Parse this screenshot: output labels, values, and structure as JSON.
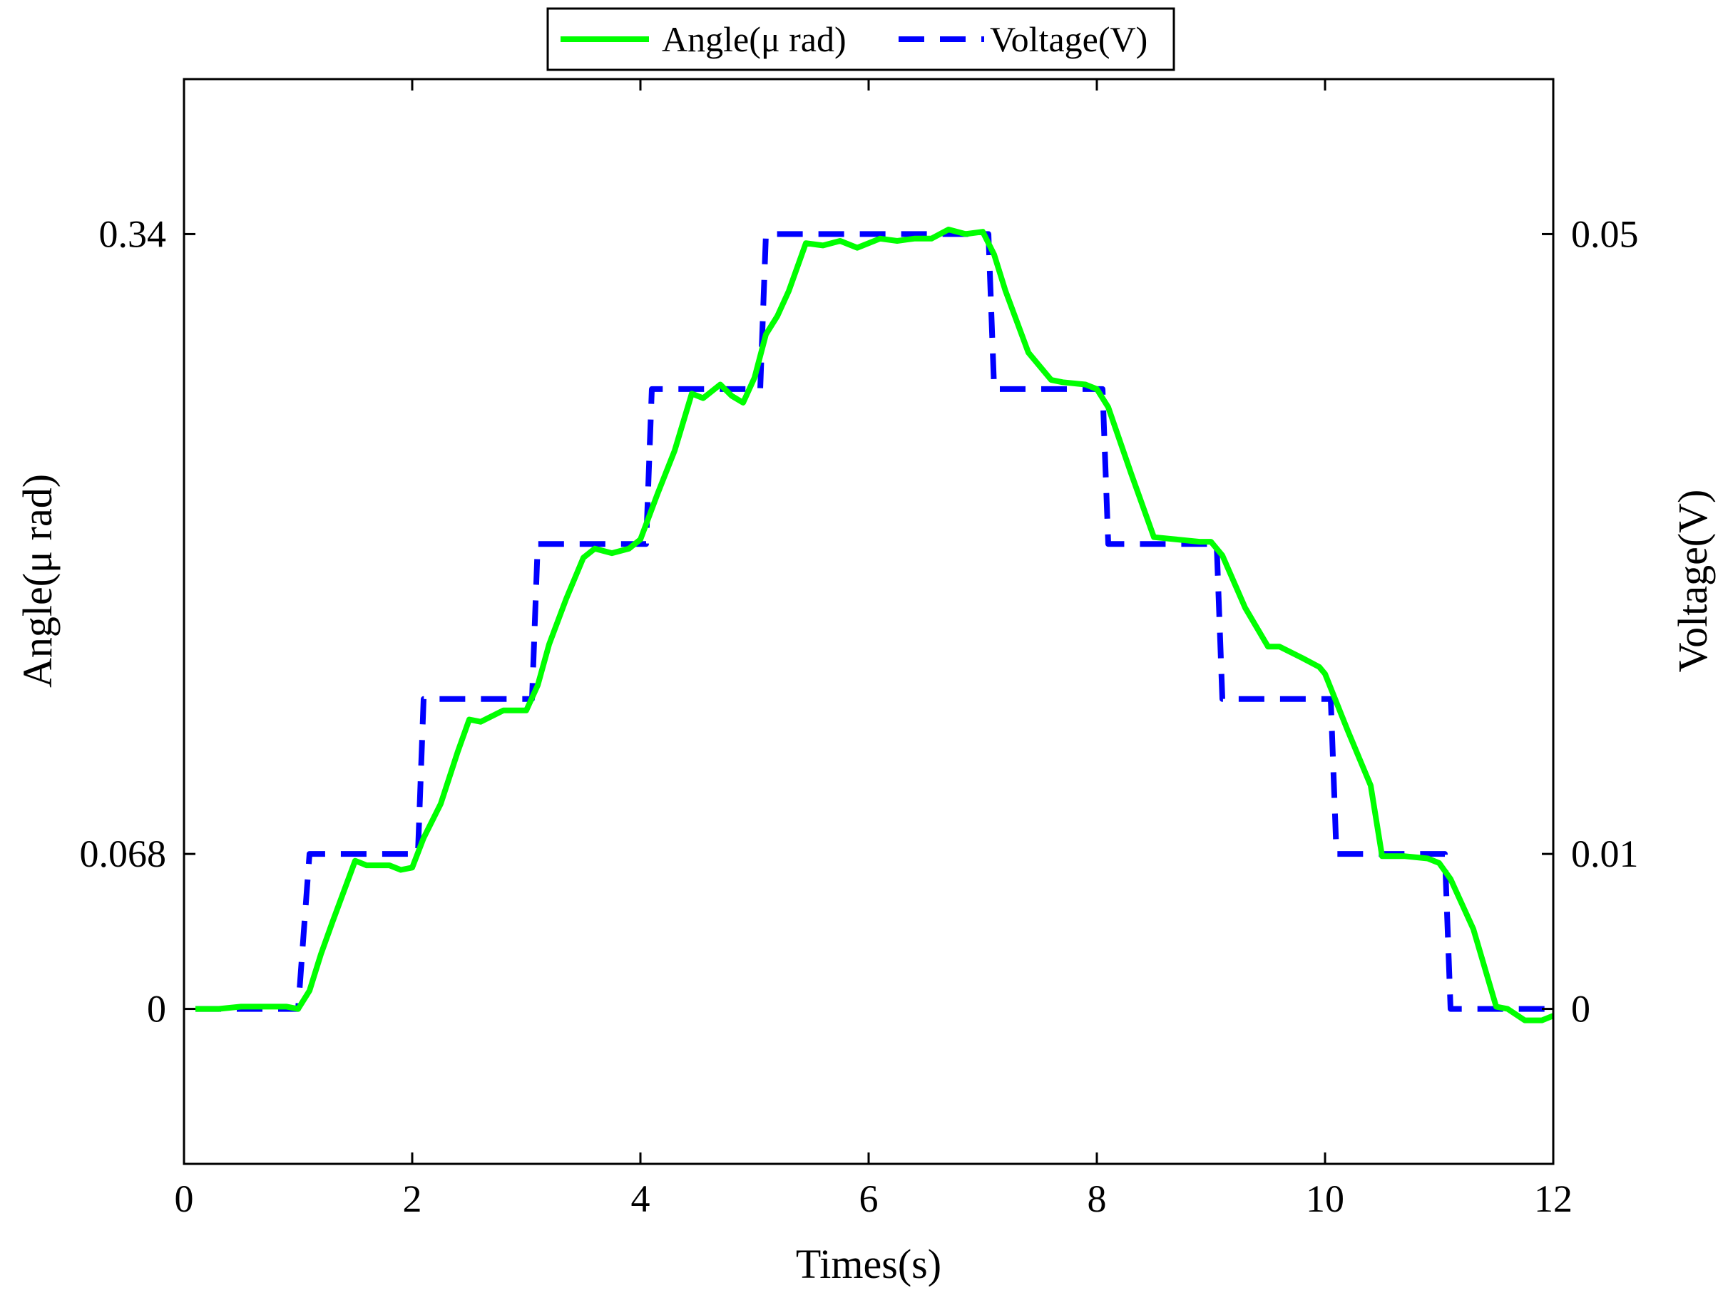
{
  "chart_data": {
    "type": "line",
    "xlabel": "Times(s)",
    "ylabel_left": "Angle(μ rad)",
    "ylabel_right": "Voltage(V)",
    "xlim": [
      0,
      12
    ],
    "ylim_left": [
      -0.068,
      0.408
    ],
    "ylim_right": [
      -0.01,
      0.06
    ],
    "x_ticks": [
      0,
      2,
      4,
      6,
      8,
      10,
      12
    ],
    "x_tick_labels": [
      "0",
      "2",
      "4",
      "6",
      "8",
      "10",
      "12"
    ],
    "y_left_ticks": [
      0,
      0.068,
      0.34
    ],
    "y_left_tick_labels": [
      "0",
      "0.068",
      "0.34"
    ],
    "y_right_ticks": [
      0,
      0.01,
      0.05
    ],
    "y_right_tick_labels": [
      "0",
      "0.01",
      "0.05"
    ],
    "grid": false,
    "legend": {
      "position": "top-center",
      "orientation": "horizontal"
    },
    "series": [
      {
        "name": "Angle(μ rad)",
        "axis": "left",
        "color": "#00ff00",
        "style": "solid",
        "x": [
          0.1,
          0.3,
          0.5,
          0.7,
          0.9,
          1.0,
          1.1,
          1.2,
          1.3,
          1.5,
          1.6,
          1.8,
          1.9,
          2.0,
          2.1,
          2.25,
          2.4,
          2.5,
          2.6,
          2.8,
          3.0,
          3.1,
          3.2,
          3.35,
          3.5,
          3.6,
          3.75,
          3.9,
          4.0,
          4.15,
          4.3,
          4.45,
          4.55,
          4.7,
          4.8,
          4.9,
          5.0,
          5.1,
          5.2,
          5.3,
          5.45,
          5.6,
          5.75,
          5.9,
          6.1,
          6.25,
          6.4,
          6.55,
          6.7,
          6.85,
          7.0,
          7.1,
          7.2,
          7.4,
          7.6,
          7.7,
          7.9,
          8.0,
          8.1,
          8.3,
          8.5,
          8.7,
          8.9,
          9.0,
          9.1,
          9.3,
          9.5,
          9.6,
          9.8,
          9.95,
          10.0,
          10.2,
          10.4,
          10.5,
          10.7,
          10.9,
          11.0,
          11.1,
          11.3,
          11.5,
          11.6,
          11.75,
          11.9,
          12.0
        ],
        "values": [
          0.0,
          0.0,
          0.001,
          0.001,
          0.001,
          0.0,
          0.008,
          0.024,
          0.038,
          0.065,
          0.063,
          0.063,
          0.061,
          0.062,
          0.075,
          0.09,
          0.113,
          0.127,
          0.126,
          0.131,
          0.131,
          0.142,
          0.16,
          0.18,
          0.198,
          0.202,
          0.2,
          0.202,
          0.206,
          0.226,
          0.245,
          0.27,
          0.268,
          0.274,
          0.269,
          0.266,
          0.277,
          0.296,
          0.304,
          0.315,
          0.336,
          0.335,
          0.337,
          0.334,
          0.338,
          0.337,
          0.338,
          0.338,
          0.342,
          0.34,
          0.341,
          0.331,
          0.315,
          0.288,
          0.276,
          0.275,
          0.274,
          0.272,
          0.264,
          0.235,
          0.207,
          0.206,
          0.205,
          0.205,
          0.199,
          0.176,
          0.159,
          0.159,
          0.154,
          0.15,
          0.147,
          0.122,
          0.098,
          0.067,
          0.067,
          0.066,
          0.064,
          0.057,
          0.035,
          0.001,
          0.0,
          -0.005,
          -0.005,
          -0.003
        ]
      },
      {
        "name": "Voltage(V)",
        "axis": "right",
        "color": "#0000ff",
        "style": "dashed",
        "x": [
          0.1,
          0.95,
          1.0,
          1.1,
          1.95,
          2.05,
          2.1,
          2.95,
          3.05,
          3.1,
          3.95,
          4.05,
          4.1,
          4.95,
          5.05,
          5.1,
          6.95,
          7.05,
          7.1,
          7.95,
          8.05,
          8.1,
          8.95,
          9.05,
          9.1,
          9.95,
          10.05,
          10.1,
          10.95,
          11.05,
          11.1,
          12.0
        ],
        "values": [
          0.0,
          0.0,
          0.0,
          0.01,
          0.01,
          0.01,
          0.02,
          0.02,
          0.02,
          0.03,
          0.03,
          0.03,
          0.04,
          0.04,
          0.04,
          0.05,
          0.05,
          0.05,
          0.04,
          0.04,
          0.04,
          0.03,
          0.03,
          0.03,
          0.02,
          0.02,
          0.02,
          0.01,
          0.01,
          0.01,
          0.0,
          0.0
        ]
      }
    ]
  }
}
